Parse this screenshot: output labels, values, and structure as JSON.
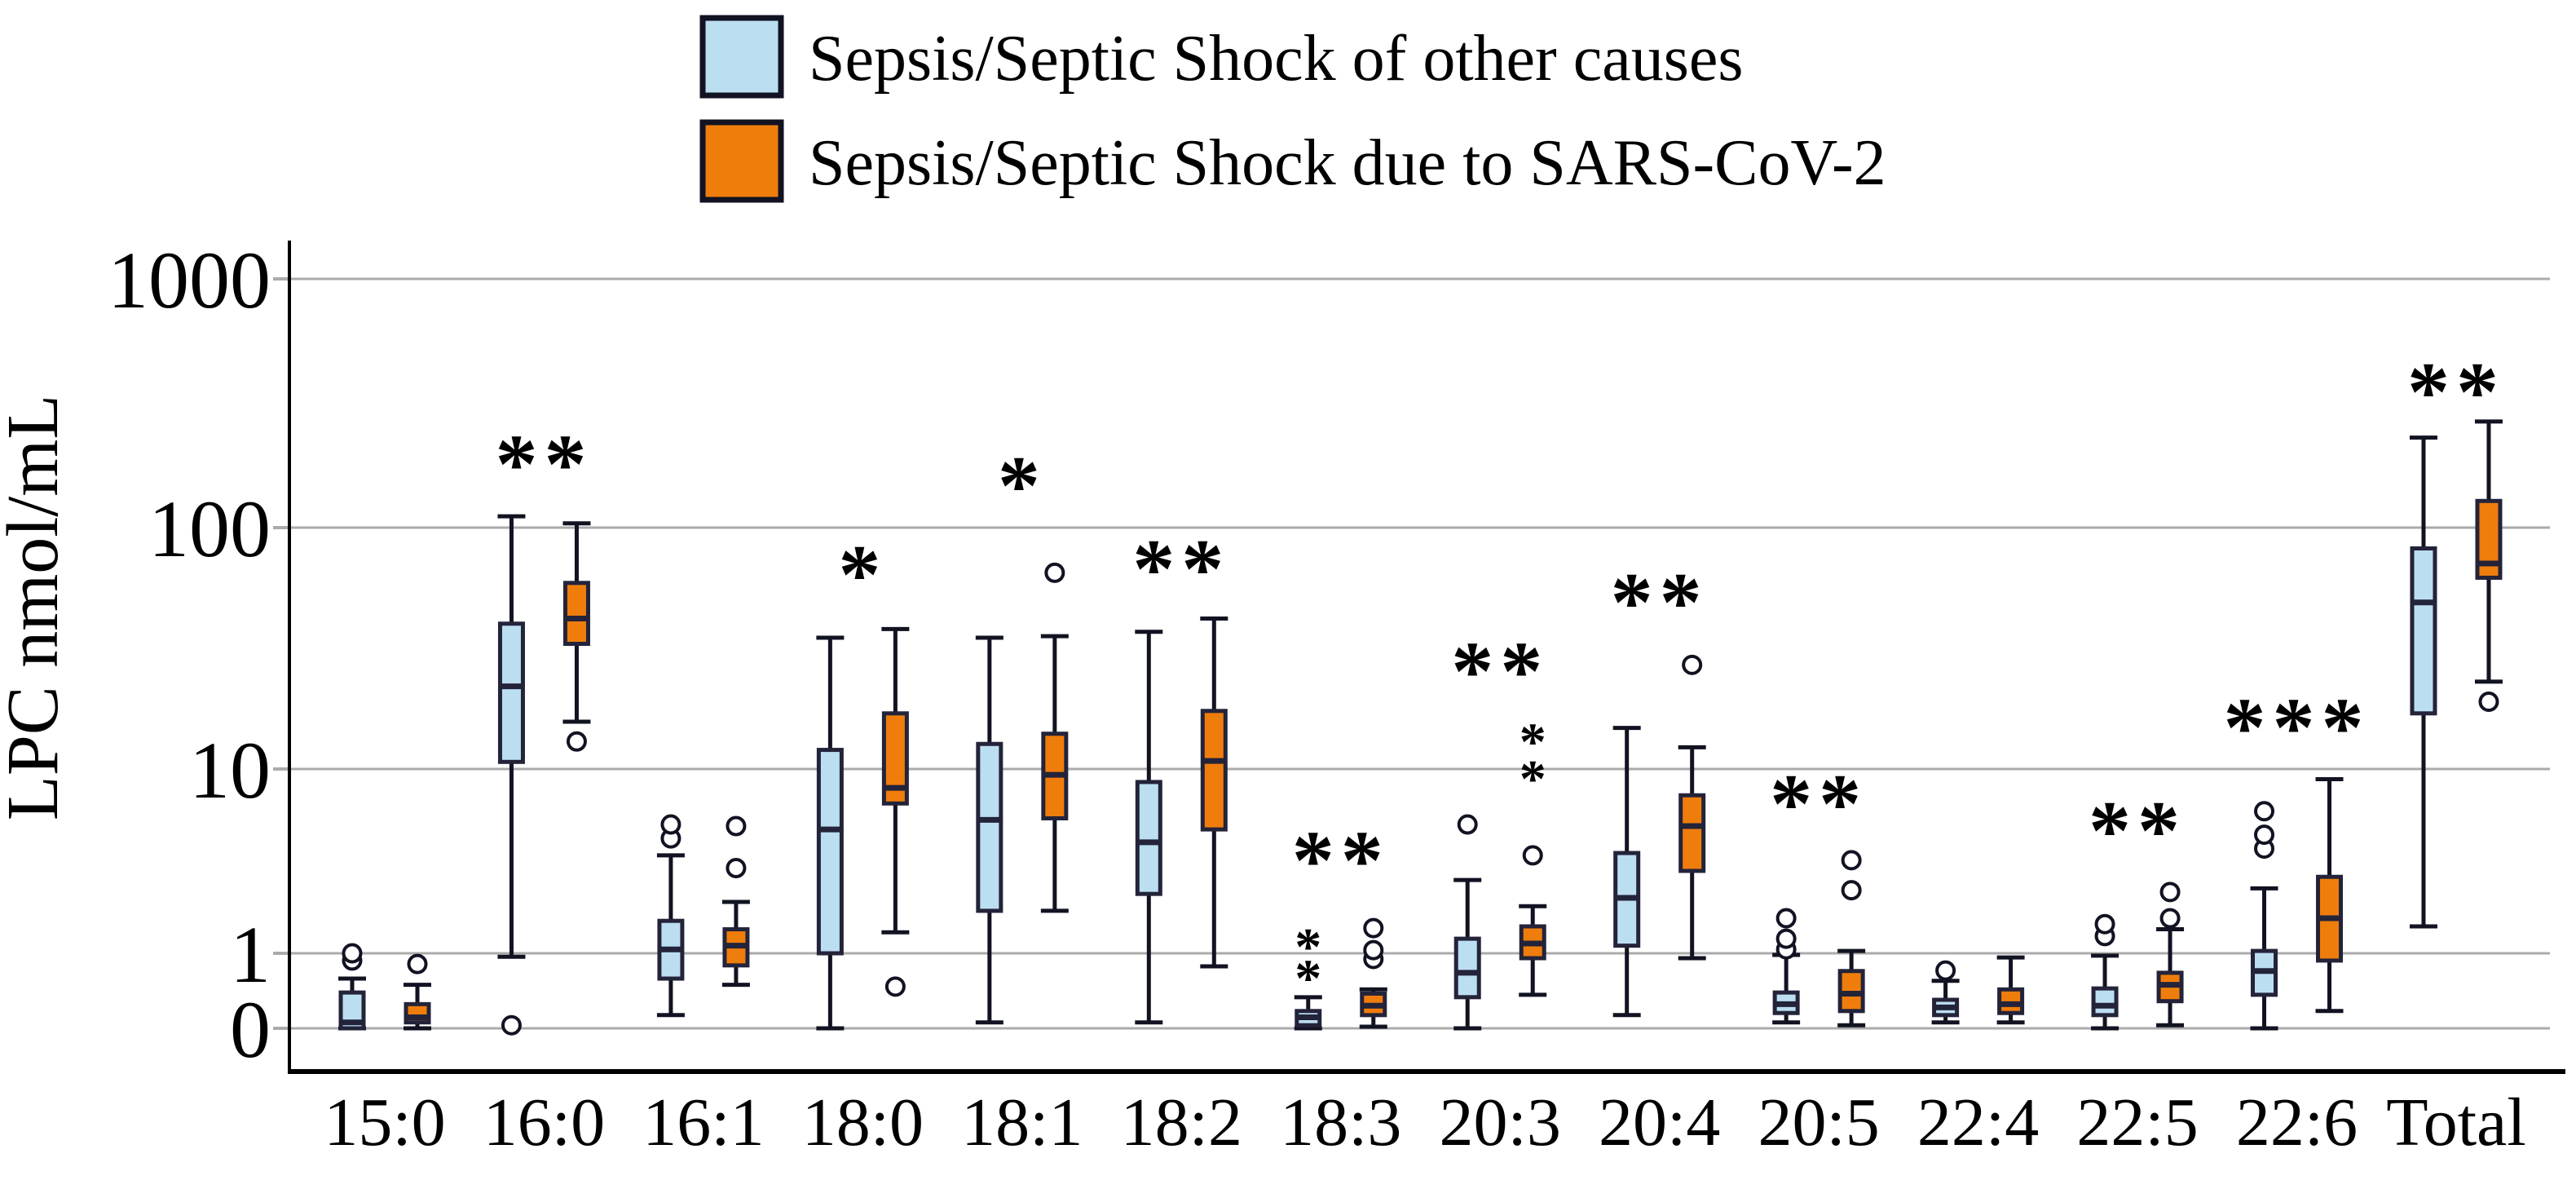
{
  "figure_title": "",
  "legend": {
    "items": [
      {
        "label": "Sepsis/Septic Shock of other causes",
        "color": "#BCDEF1"
      },
      {
        "label": "Sepsis/Septic Shock due to SARS-CoV-2",
        "color": "#EF7D0C"
      }
    ]
  },
  "axes": {
    "y_title": "LPC nmol/mL",
    "y_ticks": [
      {
        "label": "1000",
        "value": 1000
      },
      {
        "label": "100",
        "value": 100
      },
      {
        "label": "10",
        "value": 10
      },
      {
        "label": "1",
        "value": 1
      },
      {
        "label": "0",
        "value": 0
      }
    ]
  },
  "colors": {
    "blue_fill": "#BCDEF1",
    "orange_fill": "#EF7D0C",
    "box_border": "#23233A",
    "whisker": "#111322",
    "gridline": "#ABABAB",
    "axis": "#000000",
    "text": "#000000"
  },
  "chart_data": {
    "type": "boxplot",
    "title": "",
    "xlabel": "",
    "ylabel": "LPC nmol/mL",
    "y_scale": "log (decade ticks 1000/100/10/1 with compressed sub-1 band labeled 0)",
    "ylim": [
      0.1,
      1000
    ],
    "grid": true,
    "legend_position": "top",
    "categories": [
      "15:0",
      "16:0",
      "16:1",
      "18:0",
      "18:1",
      "18:2",
      "18:3",
      "20:3",
      "20:4",
      "20:5",
      "22:4",
      "22:5",
      "22:6",
      "Total"
    ],
    "series": [
      {
        "name": "Sepsis/Septic Shock of other causes",
        "color": "#BCDEF1",
        "boxes": [
          {
            "cat": "15:0",
            "lo": 0.1,
            "q1": 0.1,
            "med": 0.12,
            "q3": 0.3,
            "hi": 0.46,
            "out": [
              0.8,
              1.0
            ],
            "ext": []
          },
          {
            "cat": "16:0",
            "lo": 0.9,
            "q1": 10.7,
            "med": 22,
            "q3": 40,
            "hi": 111,
            "out": [
              0.11
            ],
            "ext": []
          },
          {
            "cat": "16:1",
            "lo": 0.15,
            "q1": 0.46,
            "med": 1.05,
            "q3": 1.5,
            "hi": 3.4,
            "out": [
              4.2,
              5.0
            ],
            "ext": []
          },
          {
            "cat": "18:0",
            "lo": 0.1,
            "q1": 1.0,
            "med": 4.7,
            "q3": 12,
            "hi": 35,
            "out": [],
            "ext": []
          },
          {
            "cat": "18:1",
            "lo": 0.12,
            "q1": 1.7,
            "med": 5.3,
            "q3": 12.7,
            "hi": 35,
            "out": [],
            "ext": []
          },
          {
            "cat": "18:2",
            "lo": 0.12,
            "q1": 2.1,
            "med": 4.0,
            "q3": 8.5,
            "hi": 37,
            "out": [],
            "ext": []
          },
          {
            "cat": "18:3",
            "lo": 0.1,
            "q1": 0.11,
            "med": 0.14,
            "q3": 0.17,
            "hi": 0.26,
            "out": [],
            "ext": [
              0.6,
              1.2
            ]
          },
          {
            "cat": "20:3",
            "lo": 0.1,
            "q1": 0.26,
            "med": 0.55,
            "q3": 1.2,
            "hi": 2.5,
            "out": [
              5.0
            ],
            "ext": []
          },
          {
            "cat": "20:4",
            "lo": 0.15,
            "q1": 1.1,
            "med": 2.0,
            "q3": 3.5,
            "hi": 14.8,
            "out": [],
            "ext": []
          },
          {
            "cat": "20:5",
            "lo": 0.12,
            "q1": 0.16,
            "med": 0.21,
            "q3": 0.3,
            "hi": 0.95,
            "out": [
              1.05,
              1.2,
              1.55
            ],
            "ext": []
          },
          {
            "cat": "22:4",
            "lo": 0.12,
            "q1": 0.15,
            "med": 0.19,
            "q3": 0.24,
            "hi": 0.43,
            "out": [
              0.59
            ],
            "ext": []
          },
          {
            "cat": "22:5",
            "lo": 0.1,
            "q1": 0.15,
            "med": 0.2,
            "q3": 0.34,
            "hi": 0.93,
            "out": [
              1.24,
              1.44
            ],
            "ext": []
          },
          {
            "cat": "22:6",
            "lo": 0.1,
            "q1": 0.28,
            "med": 0.58,
            "q3": 1.03,
            "hi": 2.25,
            "out": [
              3.7,
              4.4,
              5.9
            ],
            "ext": []
          },
          {
            "cat": "Total",
            "lo": 1.4,
            "q1": 17,
            "med": 49,
            "q3": 82,
            "hi": 230,
            "out": [],
            "ext": []
          }
        ]
      },
      {
        "name": "Sepsis/Septic Shock due to SARS-CoV-2",
        "color": "#EF7D0C",
        "boxes": [
          {
            "cat": "15:0",
            "lo": 0.1,
            "q1": 0.12,
            "med": 0.14,
            "q3": 0.21,
            "hi": 0.38,
            "out": [
              0.72
            ],
            "ext": []
          },
          {
            "cat": "16:0",
            "lo": 15.7,
            "q1": 33,
            "med": 42,
            "q3": 59,
            "hi": 104,
            "out": [
              13
            ],
            "ext": []
          },
          {
            "cat": "16:1",
            "lo": 0.38,
            "q1": 0.69,
            "med": 1.1,
            "q3": 1.35,
            "hi": 1.9,
            "out": [
              2.9,
              4.9
            ],
            "ext": []
          },
          {
            "cat": "18:0",
            "lo": 1.3,
            "q1": 6.5,
            "med": 7.9,
            "q3": 17,
            "hi": 38,
            "out": [
              0.36
            ],
            "ext": []
          },
          {
            "cat": "18:1",
            "lo": 1.7,
            "q1": 5.4,
            "med": 9.3,
            "q3": 14,
            "hi": 35.5,
            "out": [
              65
            ],
            "ext": []
          },
          {
            "cat": "18:2",
            "lo": 0.67,
            "q1": 4.7,
            "med": 10.8,
            "q3": 17.4,
            "hi": 42,
            "out": [],
            "ext": []
          },
          {
            "cat": "18:3",
            "lo": 0.105,
            "q1": 0.15,
            "med": 0.2,
            "q3": 0.29,
            "hi": 0.33,
            "out": [
              0.84,
              1.04,
              1.37
            ],
            "ext": []
          },
          {
            "cat": "20:3",
            "lo": 0.28,
            "q1": 0.86,
            "med": 1.13,
            "q3": 1.4,
            "hi": 1.8,
            "out": [
              3.4
            ],
            "ext": [
              9.8,
              14
            ]
          },
          {
            "cat": "20:4",
            "lo": 0.86,
            "q1": 2.8,
            "med": 4.9,
            "q3": 7.2,
            "hi": 12.3,
            "out": [
              27
            ],
            "ext": []
          },
          {
            "cat": "20:5",
            "lo": 0.11,
            "q1": 0.17,
            "med": 0.29,
            "q3": 0.58,
            "hi": 1.03,
            "out": [
              2.2,
              3.2
            ],
            "ext": []
          },
          {
            "cat": "22:4",
            "lo": 0.12,
            "q1": 0.16,
            "med": 0.21,
            "q3": 0.33,
            "hi": 0.88,
            "out": [],
            "ext": []
          },
          {
            "cat": "22:5",
            "lo": 0.11,
            "q1": 0.23,
            "med": 0.38,
            "q3": 0.55,
            "hi": 1.35,
            "out": [
              1.55,
              2.15
            ],
            "ext": []
          },
          {
            "cat": "22:6",
            "lo": 0.17,
            "q1": 0.8,
            "med": 1.55,
            "q3": 2.6,
            "hi": 8.8,
            "out": [],
            "ext": []
          },
          {
            "cat": "Total",
            "lo": 23,
            "q1": 62,
            "med": 71,
            "q3": 128,
            "hi": 267,
            "out": [
              19
            ],
            "ext": []
          }
        ]
      }
    ],
    "significance": [
      {
        "cat": "16:0",
        "label": "**",
        "y": 205
      },
      {
        "cat": "18:0",
        "label": "*",
        "y": 73
      },
      {
        "cat": "18:1",
        "label": "*",
        "y": 168
      },
      {
        "cat": "18:2",
        "label": "**",
        "y": 77
      },
      {
        "cat": "18:3",
        "label": "**",
        "y": 3.8
      },
      {
        "cat": "20:3",
        "label": "**",
        "y": 29
      },
      {
        "cat": "20:4",
        "label": "**",
        "y": 56
      },
      {
        "cat": "20:5",
        "label": "**",
        "y": 7.7
      },
      {
        "cat": "22:5",
        "label": "**",
        "y": 5.5
      },
      {
        "cat": "22:6",
        "label": "***",
        "y": 17
      },
      {
        "cat": "Total",
        "label": "**",
        "y": 400
      }
    ]
  }
}
